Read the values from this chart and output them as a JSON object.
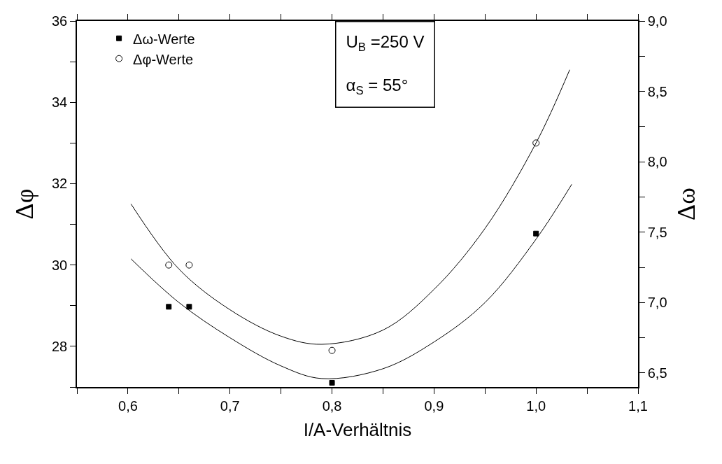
{
  "chart_data": {
    "type": "scatter",
    "xlabel": "I/A-Verhältnis",
    "ylabel": "Δφ",
    "y2label": "Δω",
    "xlim": [
      0.55,
      1.1
    ],
    "xticks": [
      {
        "value": 0.55,
        "label": null
      },
      {
        "value": 0.6,
        "label": "0,6"
      },
      {
        "value": 0.65,
        "label": null
      },
      {
        "value": 0.7,
        "label": "0,7"
      },
      {
        "value": 0.75,
        "label": null
      },
      {
        "value": 0.8,
        "label": "0,8"
      },
      {
        "value": 0.85,
        "label": null
      },
      {
        "value": 0.9,
        "label": "0,9"
      },
      {
        "value": 0.95,
        "label": null
      },
      {
        "value": 1.0,
        "label": "1,0"
      },
      {
        "value": 1.05,
        "label": null
      },
      {
        "value": 1.1,
        "label": "1,1"
      }
    ],
    "ylim": [
      27,
      36
    ],
    "yticks": [
      {
        "value": 27,
        "label": null
      },
      28,
      {
        "value": 29,
        "label": null
      },
      30,
      {
        "value": 31,
        "label": null
      },
      32,
      {
        "value": 33,
        "label": null
      },
      34,
      {
        "value": 35,
        "label": null
      },
      36
    ],
    "y2lim": [
      6.4,
      9.0
    ],
    "y2ticks": [
      {
        "value": 6.5,
        "label": "6,5"
      },
      {
        "value": 6.75,
        "label": null
      },
      {
        "value": 7.0,
        "label": "7,0"
      },
      {
        "value": 7.25,
        "label": null
      },
      {
        "value": 7.5,
        "label": "7,5"
      },
      {
        "value": 7.75,
        "label": null
      },
      {
        "value": 8.0,
        "label": "8,0"
      },
      {
        "value": 8.25,
        "label": null
      },
      {
        "value": 8.5,
        "label": "8,5"
      },
      {
        "value": 8.75,
        "label": null
      },
      {
        "value": 9.0,
        "label": "9,0"
      }
    ],
    "legend": "top left",
    "series": [
      {
        "name": "Δω-Werte",
        "axis": "y2",
        "marker": "square",
        "color": "#000000",
        "x": [
          0.64,
          0.66,
          0.8,
          1.0
        ],
        "values": [
          6.97,
          6.97,
          6.43,
          7.49
        ]
      },
      {
        "name": "Δφ-Werte",
        "marker": "circle",
        "color": "#000000",
        "x": [
          0.64,
          0.66,
          0.8,
          1.0
        ],
        "values": [
          30.0,
          30.0,
          27.9,
          33.0
        ]
      },
      {
        "type": "line",
        "marker": "none",
        "color": "#000000",
        "x": [
          0.603,
          0.65,
          0.7,
          0.75,
          0.79,
          0.85,
          0.9,
          0.95,
          1.0,
          1.033
        ],
        "values": [
          31.5,
          29.9,
          28.9,
          28.25,
          28.05,
          28.4,
          29.4,
          30.9,
          33.0,
          34.8
        ]
      },
      {
        "type": "line",
        "axis": "y2",
        "marker": "none",
        "color": "#000000",
        "x": [
          0.603,
          0.65,
          0.7,
          0.75,
          0.79,
          0.85,
          0.9,
          0.95,
          1.0,
          1.035
        ],
        "values": [
          7.31,
          7.0,
          6.75,
          6.55,
          6.46,
          6.53,
          6.72,
          7.0,
          7.45,
          7.84
        ]
      }
    ],
    "annotations": [
      "U$_{B}$ =250 V",
      "α$_{S}$ = 55°"
    ]
  }
}
